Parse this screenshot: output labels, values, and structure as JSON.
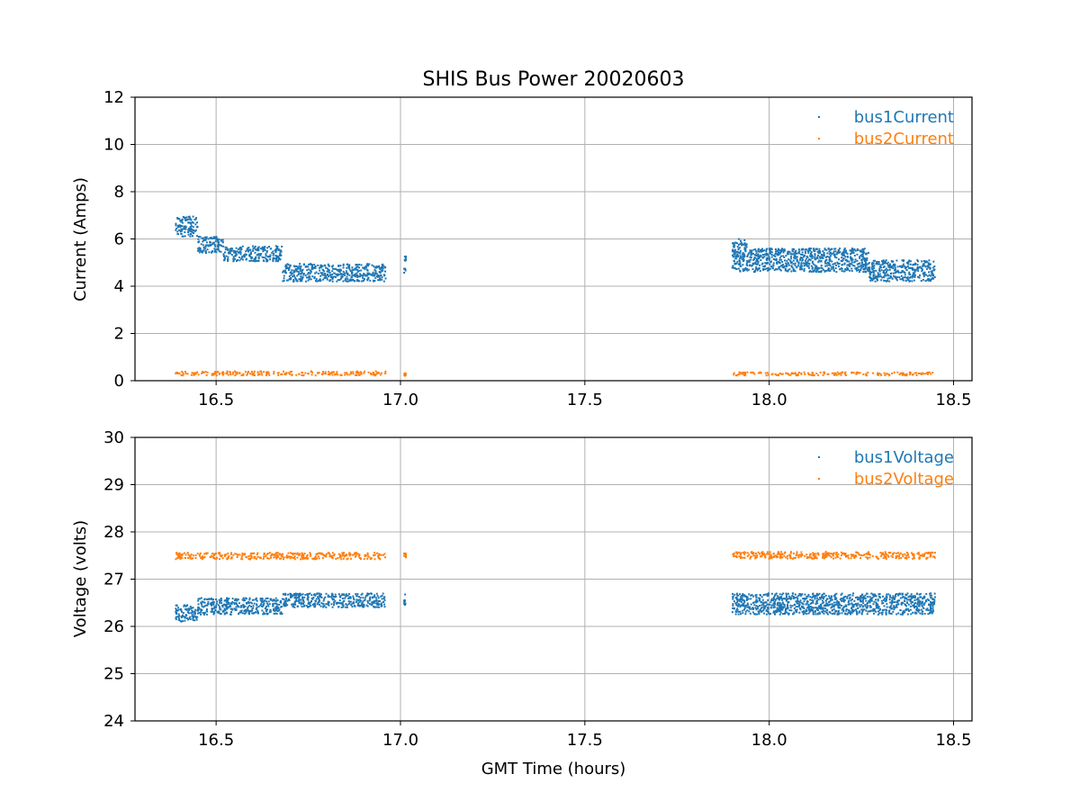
{
  "colors": {
    "series1": "#1f77b4",
    "series2": "#ff7f0e",
    "grid": "#b0b0b0",
    "axes": "#000000",
    "background": "#ffffff"
  },
  "chart_data": [
    {
      "type": "scatter",
      "title": "SHIS Bus Power 20020603",
      "xlabel": "",
      "ylabel": "Current (Amps)",
      "xlim": [
        16.28,
        18.55
      ],
      "ylim": [
        0,
        12
      ],
      "xticks": [
        16.5,
        17.0,
        17.5,
        18.0,
        18.5
      ],
      "xtick_labels": [
        "16.5",
        "17.0",
        "17.5",
        "18.0",
        "18.5"
      ],
      "yticks": [
        0,
        2,
        4,
        6,
        8,
        10,
        12
      ],
      "ytick_labels": [
        "0",
        "2",
        "4",
        "6",
        "8",
        "10",
        "12"
      ],
      "grid": true,
      "legend_position": "top-right",
      "series": [
        {
          "name": "bus1Current",
          "segments": [
            {
              "x_start": 16.39,
              "x_end": 16.45,
              "y_low": 6.1,
              "y_high": 6.95
            },
            {
              "x_start": 16.45,
              "x_end": 16.52,
              "y_low": 5.4,
              "y_high": 6.1
            },
            {
              "x_start": 16.52,
              "x_end": 16.68,
              "y_low": 5.05,
              "y_high": 5.7
            },
            {
              "x_start": 16.68,
              "x_end": 16.96,
              "y_low": 4.2,
              "y_high": 4.95
            },
            {
              "x_start": 17.01,
              "x_end": 17.015,
              "y_low": 4.5,
              "y_high": 5.3
            },
            {
              "x_start": 17.9,
              "x_end": 17.94,
              "y_low": 4.6,
              "y_high": 6.0
            },
            {
              "x_start": 17.94,
              "x_end": 18.27,
              "y_low": 4.6,
              "y_high": 5.6
            },
            {
              "x_start": 18.27,
              "x_end": 18.45,
              "y_low": 4.2,
              "y_high": 5.1
            }
          ]
        },
        {
          "name": "bus2Current",
          "segments": [
            {
              "x_start": 16.39,
              "x_end": 16.96,
              "y_low": 0.22,
              "y_high": 0.4
            },
            {
              "x_start": 17.01,
              "x_end": 17.015,
              "y_low": 0.2,
              "y_high": 0.35
            },
            {
              "x_start": 17.9,
              "x_end": 18.45,
              "y_low": 0.22,
              "y_high": 0.36
            }
          ]
        }
      ]
    },
    {
      "type": "scatter",
      "title": "",
      "xlabel": "GMT Time (hours)",
      "ylabel": "Voltage (volts)",
      "xlim": [
        16.28,
        18.55
      ],
      "ylim": [
        24,
        30
      ],
      "xticks": [
        16.5,
        17.0,
        17.5,
        18.0,
        18.5
      ],
      "xtick_labels": [
        "16.5",
        "17.0",
        "17.5",
        "18.0",
        "18.5"
      ],
      "yticks": [
        24,
        25,
        26,
        27,
        28,
        29,
        30
      ],
      "ytick_labels": [
        "24",
        "25",
        "26",
        "27",
        "28",
        "29",
        "30"
      ],
      "grid": true,
      "legend_position": "top-right",
      "series": [
        {
          "name": "bus1Voltage",
          "segments": [
            {
              "x_start": 16.39,
              "x_end": 16.45,
              "y_low": 26.1,
              "y_high": 26.45
            },
            {
              "x_start": 16.45,
              "x_end": 16.68,
              "y_low": 26.25,
              "y_high": 26.6
            },
            {
              "x_start": 16.68,
              "x_end": 16.96,
              "y_low": 26.4,
              "y_high": 26.7
            },
            {
              "x_start": 17.01,
              "x_end": 17.015,
              "y_low": 26.45,
              "y_high": 26.7
            },
            {
              "x_start": 17.9,
              "x_end": 18.45,
              "y_low": 26.25,
              "y_high": 26.7
            }
          ]
        },
        {
          "name": "bus2Voltage",
          "segments": [
            {
              "x_start": 16.39,
              "x_end": 16.96,
              "y_low": 27.42,
              "y_high": 27.56
            },
            {
              "x_start": 17.01,
              "x_end": 17.015,
              "y_low": 27.45,
              "y_high": 27.55
            },
            {
              "x_start": 17.9,
              "x_end": 18.45,
              "y_low": 27.43,
              "y_high": 27.58
            }
          ]
        }
      ]
    }
  ]
}
